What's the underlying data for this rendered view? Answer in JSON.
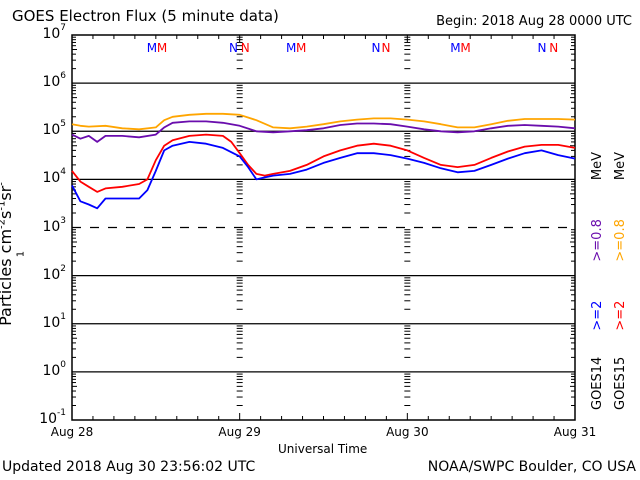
{
  "chart_data": {
    "type": "line",
    "title": "GOES Electron Flux (5 minute data)",
    "begin_label": "Begin: 2018 Aug 28 0000 UTC",
    "xlabel": "Universal Time",
    "ylabel_base": "Particles cm",
    "ylabel_parts": [
      {
        "base": "Particles cm",
        "exp": "-2"
      },
      {
        "base": "s",
        "exp": "-1"
      },
      {
        "base": "sr",
        "exp": "-1"
      }
    ],
    "yscale": "log",
    "ylim": [
      0.1,
      10000000
    ],
    "ytick_labels": [
      {
        "base": "10",
        "exp": "7",
        "value": 10000000
      },
      {
        "base": "10",
        "exp": "6",
        "value": 1000000
      },
      {
        "base": "10",
        "exp": "5",
        "value": 100000
      },
      {
        "base": "10",
        "exp": "4",
        "value": 10000
      },
      {
        "base": "10",
        "exp": "3",
        "value": 1000
      },
      {
        "base": "10",
        "exp": "2",
        "value": 100
      },
      {
        "base": "10",
        "exp": "1",
        "value": 10
      },
      {
        "base": "10",
        "exp": "0",
        "value": 1
      },
      {
        "base": "10",
        "exp": "-1",
        "value": 0.1
      }
    ],
    "xlim_days": [
      0,
      3
    ],
    "xtick_labels": [
      {
        "label": "Aug 28",
        "day": 0
      },
      {
        "label": "Aug 29",
        "day": 1
      },
      {
        "label": "Aug 30",
        "day": 2
      },
      {
        "label": "Aug 31",
        "day": 3
      }
    ],
    "threshold": {
      "value": 1000,
      "style": "dashed"
    },
    "gridlines_decades": [
      1000000,
      100000,
      10000,
      100,
      10,
      1
    ],
    "noon_midnight_marks": [
      {
        "label": "M",
        "day": 0.47,
        "color": "#0000ff"
      },
      {
        "label": "M",
        "day": 0.53,
        "color": "#ff0000"
      },
      {
        "label": "N",
        "day": 0.96,
        "color": "#0000ff"
      },
      {
        "label": "N",
        "day": 1.03,
        "color": "#ff0000"
      },
      {
        "label": "M",
        "day": 1.3,
        "color": "#0000ff"
      },
      {
        "label": "M",
        "day": 1.36,
        "color": "#ff0000"
      },
      {
        "label": "N",
        "day": 1.81,
        "color": "#0000ff"
      },
      {
        "label": "N",
        "day": 1.87,
        "color": "#ff0000"
      },
      {
        "label": "M",
        "day": 2.28,
        "color": "#0000ff"
      },
      {
        "label": "M",
        "day": 2.34,
        "color": "#ff0000"
      },
      {
        "label": "N",
        "day": 2.8,
        "color": "#0000ff"
      },
      {
        "label": "N",
        "day": 2.87,
        "color": "#ff0000"
      }
    ],
    "series": [
      {
        "name": "GOES15 >=0.8 MeV",
        "color": "#ffa500",
        "x": [
          0,
          0.05,
          0.1,
          0.2,
          0.3,
          0.4,
          0.5,
          0.55,
          0.6,
          0.7,
          0.8,
          0.9,
          1.0,
          1.1,
          1.2,
          1.3,
          1.4,
          1.5,
          1.6,
          1.7,
          1.8,
          1.9,
          2.0,
          2.1,
          2.2,
          2.3,
          2.4,
          2.5,
          2.6,
          2.7,
          2.8,
          2.9,
          3.0
        ],
        "y": [
          140000,
          130000,
          125000,
          130000,
          115000,
          110000,
          120000,
          170000,
          200000,
          220000,
          230000,
          230000,
          220000,
          170000,
          120000,
          115000,
          125000,
          140000,
          160000,
          175000,
          185000,
          185000,
          175000,
          160000,
          140000,
          120000,
          120000,
          140000,
          165000,
          180000,
          180000,
          180000,
          175000
        ]
      },
      {
        "name": "GOES14 >=0.8 MeV",
        "color": "#6a0dad",
        "x": [
          0,
          0.05,
          0.1,
          0.15,
          0.2,
          0.3,
          0.4,
          0.5,
          0.55,
          0.6,
          0.7,
          0.8,
          0.9,
          1.0,
          1.1,
          1.2,
          1.3,
          1.4,
          1.5,
          1.6,
          1.7,
          1.8,
          1.9,
          2.0,
          2.1,
          2.2,
          2.3,
          2.4,
          2.5,
          2.6,
          2.7,
          2.8,
          2.9,
          3.0
        ],
        "y": [
          85000,
          70000,
          80000,
          60000,
          80000,
          80000,
          75000,
          85000,
          120000,
          150000,
          160000,
          160000,
          150000,
          130000,
          100000,
          95000,
          100000,
          105000,
          115000,
          135000,
          145000,
          145000,
          140000,
          125000,
          110000,
          100000,
          95000,
          100000,
          115000,
          130000,
          135000,
          130000,
          125000,
          115000
        ]
      },
      {
        "name": "GOES15 >=2 MeV",
        "color": "#ff0000",
        "x": [
          0,
          0.05,
          0.1,
          0.15,
          0.2,
          0.3,
          0.4,
          0.45,
          0.5,
          0.55,
          0.6,
          0.7,
          0.8,
          0.9,
          0.95,
          1.0,
          1.05,
          1.1,
          1.15,
          1.2,
          1.3,
          1.4,
          1.5,
          1.6,
          1.7,
          1.8,
          1.9,
          2.0,
          2.1,
          2.2,
          2.3,
          2.4,
          2.5,
          2.6,
          2.7,
          2.8,
          2.9,
          3.0
        ],
        "y": [
          15000,
          9000,
          7000,
          5500,
          6500,
          7000,
          8000,
          10000,
          25000,
          50000,
          65000,
          80000,
          85000,
          80000,
          60000,
          35000,
          20000,
          13000,
          12000,
          13000,
          15000,
          20000,
          30000,
          40000,
          50000,
          55000,
          50000,
          40000,
          28000,
          20000,
          18000,
          20000,
          28000,
          38000,
          48000,
          52000,
          52000,
          45000
        ]
      },
      {
        "name": "GOES14 >=2 MeV",
        "color": "#0000ff",
        "x": [
          0,
          0.05,
          0.1,
          0.15,
          0.2,
          0.3,
          0.4,
          0.45,
          0.5,
          0.55,
          0.6,
          0.7,
          0.8,
          0.9,
          1.0,
          1.05,
          1.1,
          1.15,
          1.2,
          1.3,
          1.4,
          1.5,
          1.6,
          1.7,
          1.8,
          1.9,
          2.0,
          2.1,
          2.2,
          2.3,
          2.4,
          2.5,
          2.6,
          2.7,
          2.8,
          2.9,
          3.0
        ],
        "y": [
          7500,
          3500,
          3000,
          2500,
          4000,
          4000,
          4000,
          6000,
          15000,
          40000,
          50000,
          60000,
          55000,
          45000,
          30000,
          18000,
          10000,
          11000,
          12000,
          13000,
          16000,
          22000,
          28000,
          35000,
          35000,
          32000,
          27000,
          22000,
          17000,
          14000,
          15000,
          20000,
          27000,
          35000,
          40000,
          32000,
          27000
        ]
      }
    ],
    "legend": {
      "placement": "right",
      "rows": [
        {
          "sat": "GOES14",
          "items": [
            {
              "label": ">=2",
              "color": "#0000ff"
            },
            {
              "label": ">=0.8",
              "color": "#6a0dad"
            }
          ],
          "unit": "MeV"
        },
        {
          "sat": "GOES15",
          "items": [
            {
              "label": ">=2",
              "color": "#ff0000"
            },
            {
              "label": ">=0.8",
              "color": "#ffa500"
            }
          ],
          "unit": "MeV"
        }
      ]
    }
  },
  "footer": {
    "updated": "Updated 2018 Aug 30 23:56:02 UTC",
    "credit": "NOAA/SWPC Boulder, CO USA"
  }
}
